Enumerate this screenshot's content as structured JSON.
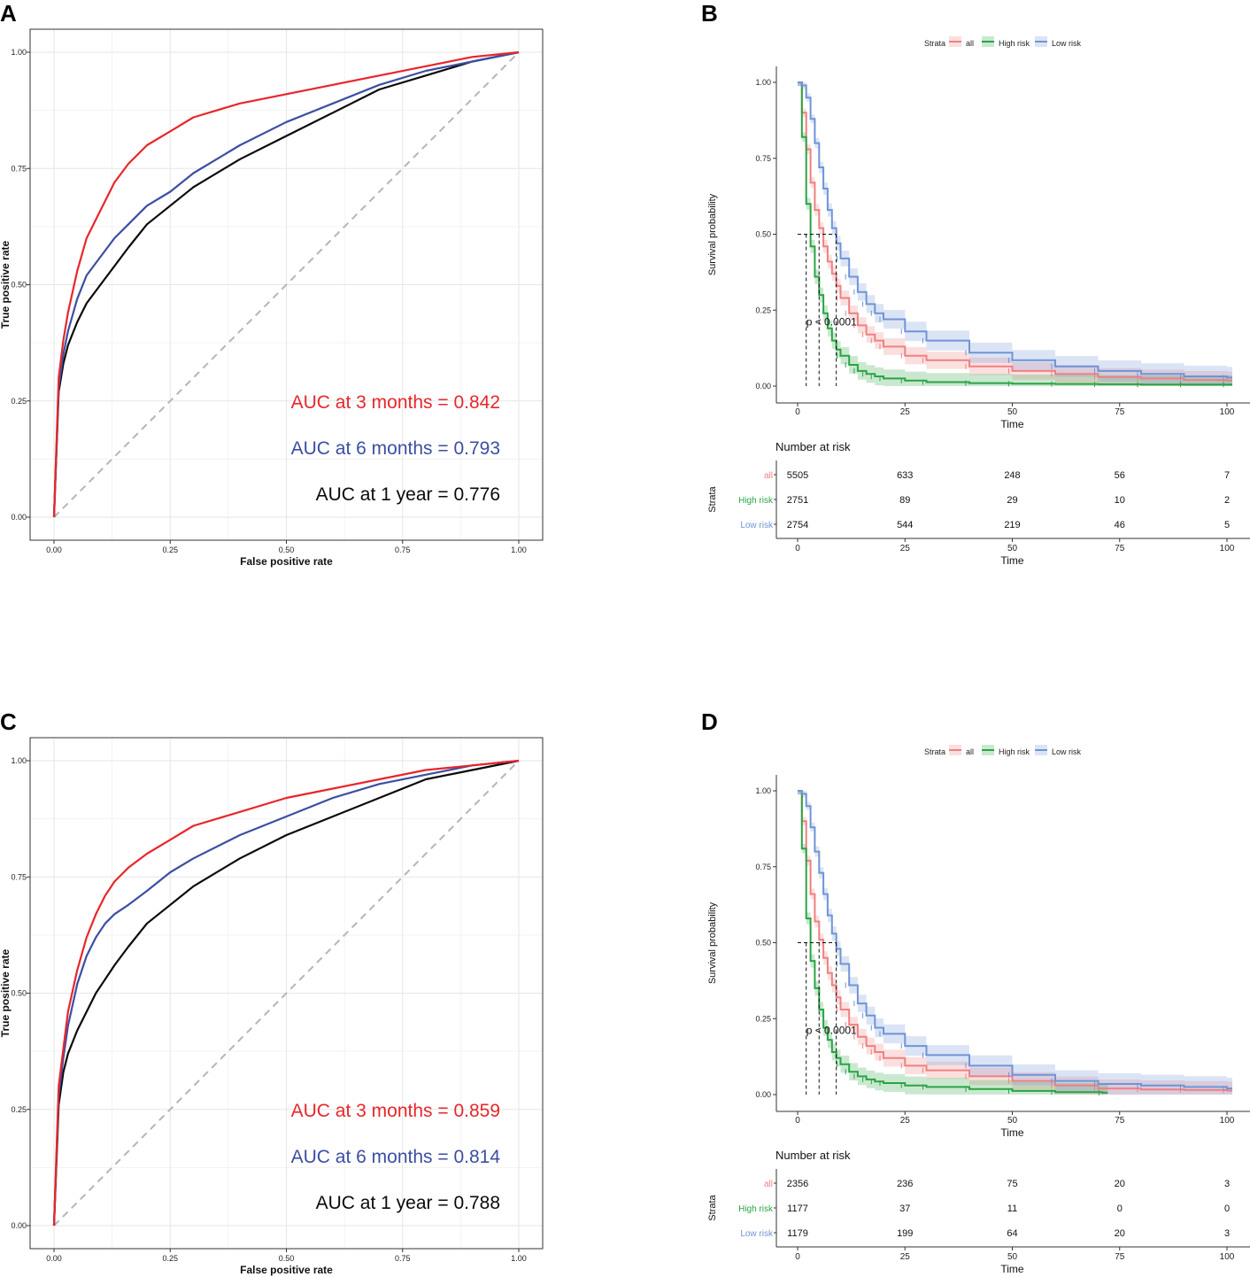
{
  "colors": {
    "roc3": "#e8262b",
    "roc6": "#3c4ea3",
    "roc12": "#0a0a0a",
    "diag": "#b5b5b5",
    "km_all": "#f08080",
    "km_high": "#2ba444",
    "km_low": "#6f94d6"
  },
  "chart_data": [
    {
      "type": "line",
      "panel": "A",
      "xlabel": "False positive rate",
      "ylabel": "True positive rate",
      "xlim": [
        0,
        1
      ],
      "ylim": [
        0,
        1
      ],
      "xticks": [
        "0.00",
        "0.25",
        "0.50",
        "0.75",
        "1.00"
      ],
      "yticks": [
        "0.00",
        "0.25",
        "0.50",
        "0.75",
        "1.00"
      ],
      "series": [
        {
          "name": "AUC at 3 months = 0.842",
          "color": "#e8262b",
          "x": [
            0,
            0.01,
            0.02,
            0.03,
            0.05,
            0.07,
            0.1,
            0.13,
            0.16,
            0.2,
            0.25,
            0.3,
            0.4,
            0.5,
            0.6,
            0.7,
            0.8,
            0.9,
            1.0
          ],
          "y": [
            0,
            0.3,
            0.38,
            0.44,
            0.53,
            0.6,
            0.66,
            0.72,
            0.76,
            0.8,
            0.83,
            0.86,
            0.89,
            0.91,
            0.93,
            0.95,
            0.97,
            0.99,
            1.0
          ]
        },
        {
          "name": "AUC at 6 months = 0.793",
          "color": "#3c4ea3",
          "x": [
            0,
            0.01,
            0.02,
            0.03,
            0.05,
            0.07,
            0.1,
            0.13,
            0.16,
            0.2,
            0.25,
            0.3,
            0.4,
            0.5,
            0.6,
            0.7,
            0.8,
            0.9,
            1.0
          ],
          "y": [
            0,
            0.28,
            0.35,
            0.4,
            0.47,
            0.52,
            0.56,
            0.6,
            0.63,
            0.67,
            0.7,
            0.74,
            0.8,
            0.85,
            0.89,
            0.93,
            0.96,
            0.98,
            1.0
          ]
        },
        {
          "name": "AUC at 1 year = 0.776",
          "color": "#0a0a0a",
          "x": [
            0,
            0.01,
            0.02,
            0.03,
            0.05,
            0.07,
            0.1,
            0.13,
            0.16,
            0.2,
            0.25,
            0.3,
            0.4,
            0.5,
            0.6,
            0.7,
            0.8,
            0.9,
            1.0
          ],
          "y": [
            0,
            0.27,
            0.33,
            0.37,
            0.42,
            0.46,
            0.5,
            0.54,
            0.58,
            0.63,
            0.67,
            0.71,
            0.77,
            0.82,
            0.87,
            0.92,
            0.95,
            0.98,
            1.0
          ]
        }
      ]
    },
    {
      "type": "line",
      "panel": "B",
      "xlabel": "Time",
      "ylabel": "Survival probability",
      "xlim": [
        0,
        100
      ],
      "ylim": [
        0,
        1
      ],
      "xticks": [
        "0",
        "25",
        "50",
        "75",
        "100"
      ],
      "yticks": [
        "0.00",
        "0.25",
        "0.50",
        "0.75",
        "1.00"
      ],
      "legend_title": "Strata",
      "legend_items": [
        "all",
        "High risk",
        "Low risk"
      ],
      "pvalue": "p < 0.0001",
      "median_times": [
        2,
        5,
        9
      ],
      "series": [
        {
          "name": "all",
          "color": "#f08080",
          "x": [
            0,
            1,
            2,
            3,
            4,
            5,
            6,
            7,
            8,
            9,
            10,
            12,
            14,
            16,
            18,
            20,
            25,
            30,
            40,
            50,
            60,
            70,
            80,
            90,
            100
          ],
          "y": [
            1.0,
            0.9,
            0.78,
            0.67,
            0.58,
            0.52,
            0.46,
            0.41,
            0.37,
            0.33,
            0.29,
            0.24,
            0.2,
            0.17,
            0.15,
            0.13,
            0.1,
            0.085,
            0.065,
            0.05,
            0.04,
            0.03,
            0.025,
            0.02,
            0.018
          ]
        },
        {
          "name": "High risk",
          "color": "#2ba444",
          "x": [
            0,
            1,
            2,
            3,
            4,
            5,
            6,
            7,
            8,
            9,
            10,
            12,
            14,
            16,
            18,
            20,
            25,
            30,
            40,
            50,
            60,
            70,
            80,
            90,
            100
          ],
          "y": [
            1.0,
            0.82,
            0.6,
            0.46,
            0.36,
            0.3,
            0.24,
            0.19,
            0.15,
            0.12,
            0.1,
            0.07,
            0.05,
            0.04,
            0.032,
            0.025,
            0.018,
            0.013,
            0.01,
            0.008,
            0.007,
            0.006,
            0.005,
            0.005,
            0.005
          ]
        },
        {
          "name": "Low risk",
          "color": "#6f94d6",
          "x": [
            0,
            1,
            2,
            3,
            4,
            5,
            6,
            7,
            8,
            9,
            10,
            12,
            14,
            16,
            18,
            20,
            25,
            30,
            40,
            50,
            60,
            70,
            80,
            90,
            100
          ],
          "y": [
            1.0,
            0.99,
            0.95,
            0.88,
            0.8,
            0.72,
            0.65,
            0.58,
            0.52,
            0.47,
            0.42,
            0.36,
            0.31,
            0.27,
            0.24,
            0.22,
            0.18,
            0.15,
            0.11,
            0.085,
            0.065,
            0.05,
            0.04,
            0.032,
            0.028
          ]
        }
      ],
      "risk_table": {
        "title": "Number at risk",
        "ylabel": "Strata",
        "xlabel": "Time",
        "times": [
          "0",
          "25",
          "50",
          "75",
          "100"
        ],
        "rows": [
          {
            "label": "all",
            "values": [
              "5505",
              "633",
              "248",
              "56",
              "7"
            ]
          },
          {
            "label": "High risk",
            "values": [
              "2751",
              "89",
              "29",
              "10",
              "2"
            ]
          },
          {
            "label": "Low risk",
            "values": [
              "2754",
              "544",
              "219",
              "46",
              "5"
            ]
          }
        ]
      }
    },
    {
      "type": "line",
      "panel": "C",
      "xlabel": "False positive rate",
      "ylabel": "True positive rate",
      "xlim": [
        0,
        1
      ],
      "ylim": [
        0,
        1
      ],
      "xticks": [
        "0.00",
        "0.25",
        "0.50",
        "0.75",
        "1.00"
      ],
      "yticks": [
        "0.00",
        "0.25",
        "0.50",
        "0.75",
        "1.00"
      ],
      "series": [
        {
          "name": "AUC at 3 months = 0.859",
          "color": "#e8262b",
          "x": [
            0,
            0.01,
            0.02,
            0.03,
            0.05,
            0.07,
            0.09,
            0.11,
            0.13,
            0.16,
            0.2,
            0.25,
            0.3,
            0.4,
            0.5,
            0.6,
            0.7,
            0.8,
            0.9,
            1.0
          ],
          "y": [
            0,
            0.3,
            0.38,
            0.46,
            0.55,
            0.62,
            0.67,
            0.71,
            0.74,
            0.77,
            0.8,
            0.83,
            0.86,
            0.89,
            0.92,
            0.94,
            0.96,
            0.98,
            0.99,
            1.0
          ]
        },
        {
          "name": "AUC at 6 months = 0.814",
          "color": "#3c4ea3",
          "x": [
            0,
            0.01,
            0.02,
            0.03,
            0.05,
            0.07,
            0.09,
            0.11,
            0.13,
            0.16,
            0.2,
            0.25,
            0.3,
            0.4,
            0.5,
            0.6,
            0.7,
            0.8,
            0.9,
            1.0
          ],
          "y": [
            0,
            0.28,
            0.36,
            0.43,
            0.52,
            0.58,
            0.62,
            0.65,
            0.67,
            0.69,
            0.72,
            0.76,
            0.79,
            0.84,
            0.88,
            0.92,
            0.95,
            0.97,
            0.99,
            1.0
          ]
        },
        {
          "name": "AUC at 1 year = 0.788",
          "color": "#0a0a0a",
          "x": [
            0,
            0.01,
            0.02,
            0.03,
            0.05,
            0.07,
            0.09,
            0.11,
            0.13,
            0.16,
            0.2,
            0.25,
            0.3,
            0.4,
            0.5,
            0.6,
            0.7,
            0.8,
            0.9,
            1.0
          ],
          "y": [
            0,
            0.26,
            0.33,
            0.37,
            0.42,
            0.46,
            0.5,
            0.53,
            0.56,
            0.6,
            0.65,
            0.69,
            0.73,
            0.79,
            0.84,
            0.88,
            0.92,
            0.96,
            0.98,
            1.0
          ]
        }
      ]
    },
    {
      "type": "line",
      "panel": "D",
      "xlabel": "Time",
      "ylabel": "Survival probability",
      "xlim": [
        0,
        100
      ],
      "ylim": [
        0,
        1
      ],
      "xticks": [
        "0",
        "25",
        "50",
        "75",
        "100"
      ],
      "yticks": [
        "0.00",
        "0.25",
        "0.50",
        "0.75",
        "1.00"
      ],
      "legend_title": "Strata",
      "legend_items": [
        "all",
        "High risk",
        "Low risk"
      ],
      "pvalue": "p < 0.0001",
      "median_times": [
        2,
        5,
        9
      ],
      "series": [
        {
          "name": "all",
          "color": "#f08080",
          "x": [
            0,
            1,
            2,
            3,
            4,
            5,
            6,
            7,
            8,
            9,
            10,
            12,
            14,
            16,
            18,
            20,
            25,
            30,
            40,
            50,
            60,
            70,
            80,
            90,
            100
          ],
          "y": [
            1.0,
            0.9,
            0.77,
            0.66,
            0.57,
            0.51,
            0.45,
            0.4,
            0.36,
            0.32,
            0.28,
            0.23,
            0.19,
            0.16,
            0.14,
            0.12,
            0.095,
            0.08,
            0.06,
            0.045,
            0.03,
            0.02,
            0.017,
            0.015,
            0.013
          ]
        },
        {
          "name": "High risk",
          "color": "#2ba444",
          "x": [
            0,
            1,
            2,
            3,
            4,
            5,
            6,
            7,
            8,
            9,
            10,
            12,
            14,
            16,
            18,
            20,
            25,
            30,
            40,
            50,
            60,
            71
          ],
          "y": [
            1.0,
            0.81,
            0.58,
            0.44,
            0.35,
            0.28,
            0.22,
            0.18,
            0.14,
            0.12,
            0.1,
            0.075,
            0.06,
            0.05,
            0.043,
            0.038,
            0.03,
            0.025,
            0.018,
            0.012,
            0.008,
            0.006
          ]
        },
        {
          "name": "Low risk",
          "color": "#6f94d6",
          "x": [
            0,
            1,
            2,
            3,
            4,
            5,
            6,
            7,
            8,
            9,
            10,
            12,
            14,
            16,
            18,
            20,
            25,
            30,
            40,
            50,
            60,
            70,
            80,
            90,
            100
          ],
          "y": [
            1.0,
            0.99,
            0.95,
            0.88,
            0.8,
            0.73,
            0.66,
            0.59,
            0.53,
            0.48,
            0.43,
            0.36,
            0.3,
            0.26,
            0.22,
            0.2,
            0.16,
            0.13,
            0.095,
            0.065,
            0.045,
            0.035,
            0.03,
            0.025,
            0.02
          ]
        }
      ],
      "risk_table": {
        "title": "Number at risk",
        "ylabel": "Strata",
        "xlabel": "Time",
        "times": [
          "0",
          "25",
          "50",
          "75",
          "100"
        ],
        "rows": [
          {
            "label": "all",
            "values": [
              "2356",
              "236",
              "75",
              "20",
              "3"
            ]
          },
          {
            "label": "High risk",
            "values": [
              "1177",
              "37",
              "11",
              "0",
              "0"
            ]
          },
          {
            "label": "Low risk",
            "values": [
              "1179",
              "199",
              "64",
              "20",
              "3"
            ]
          }
        ]
      }
    }
  ]
}
